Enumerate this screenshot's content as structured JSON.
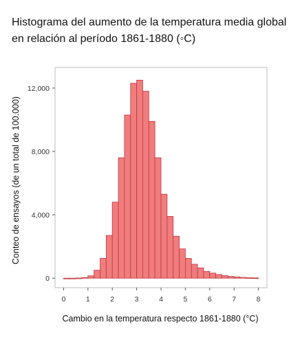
{
  "title_lines": [
    "Histograma del aumento de la temperatura media global",
    "en relación al período 1861-1880 (◦C)"
  ],
  "chart_data": {
    "type": "bar",
    "title": "Histograma del aumento de la temperatura media global en relación al período 1861-1880 (◦C)",
    "xlabel": "Cambio en la temperatura respecto 1861-1880 (°C)",
    "ylabel": "Conteo de ensayos (de un total de 100.000)",
    "xlim": [
      -0.35,
      8.35
    ],
    "ylim": [
      -600,
      13300
    ],
    "x_ticks": [
      0,
      1,
      2,
      3,
      4,
      5,
      6,
      7,
      8
    ],
    "x_tick_labels": [
      "0",
      "1",
      "2",
      "3",
      "4",
      "5",
      "6",
      "7",
      "8"
    ],
    "y_ticks": [
      0,
      4000,
      8000,
      12000
    ],
    "y_tick_labels": [
      "0",
      "4,000",
      "8,000",
      "12,000"
    ],
    "bin_width": 0.25,
    "bin_starts": [
      0,
      0.25,
      0.5,
      0.75,
      1.0,
      1.25,
      1.5,
      1.75,
      2.0,
      2.25,
      2.5,
      2.75,
      3.0,
      3.25,
      3.5,
      3.75,
      4.0,
      4.25,
      4.5,
      4.75,
      5.0,
      5.25,
      5.5,
      5.75,
      6.0,
      6.25,
      6.5,
      6.75,
      7.0,
      7.25,
      7.5,
      7.75
    ],
    "values": [
      0,
      0,
      10,
      40,
      150,
      500,
      1250,
      2700,
      4800,
      7600,
      10300,
      12300,
      12500,
      11800,
      9900,
      7600,
      5300,
      3900,
      2650,
      1850,
      1250,
      880,
      650,
      430,
      320,
      230,
      160,
      110,
      80,
      50,
      30,
      20
    ],
    "grid": false,
    "bar_fill": "#f07d7d",
    "bar_stroke": "#c0353f",
    "frame_color": "#bdbdbd"
  }
}
